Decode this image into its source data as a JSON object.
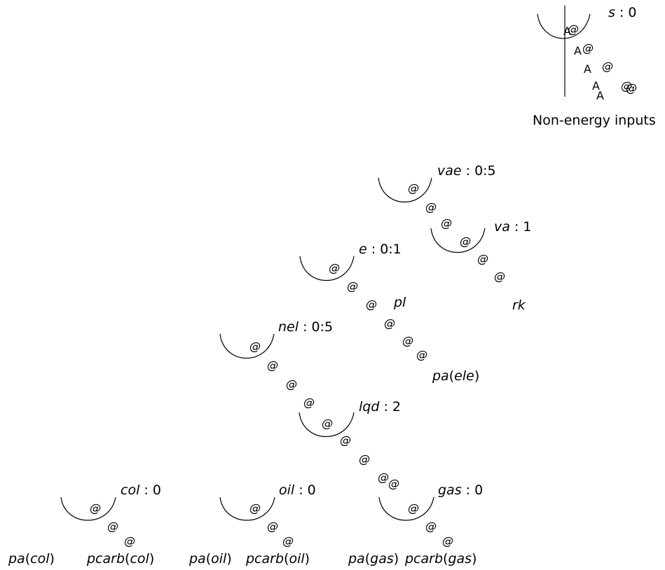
{
  "nodes": {
    "s": {
      "name": "s",
      "sep": ": 0"
    },
    "vae": {
      "name": "vae",
      "sep": ": 0:5"
    },
    "va": {
      "name": "va",
      "sep": ": 1"
    },
    "e": {
      "name": "e",
      "sep": ": 0:1"
    },
    "nel": {
      "name": "nel",
      "sep": ": 0:5"
    },
    "lqd": {
      "name": "lqd",
      "sep": ": 2"
    },
    "col": {
      "name": "col",
      "sep": ": 0"
    },
    "oil": {
      "name": "oil",
      "sep": ": 0"
    },
    "gas": {
      "name": "gas",
      "sep": ": 0"
    }
  },
  "leaves": {
    "non_energy": "Non-energy inputs",
    "pl": "pl",
    "rk": "rk",
    "pa_ele": {
      "fn": "pa",
      "arg": "ele"
    },
    "pa_col": {
      "fn": "pa",
      "arg": "col"
    },
    "pcarb_col": {
      "fn": "pcarb",
      "arg": "col"
    },
    "pa_oil": {
      "fn": "pa",
      "arg": "oil"
    },
    "pcarb_oil": {
      "fn": "pcarb",
      "arg": "oil"
    },
    "pa_gas": {
      "fn": "pa",
      "arg": "gas"
    },
    "pcarb_gas": {
      "fn": "pcarb",
      "arg": "gas"
    }
  },
  "glyphs": {
    "at": "@",
    "a": "A"
  }
}
